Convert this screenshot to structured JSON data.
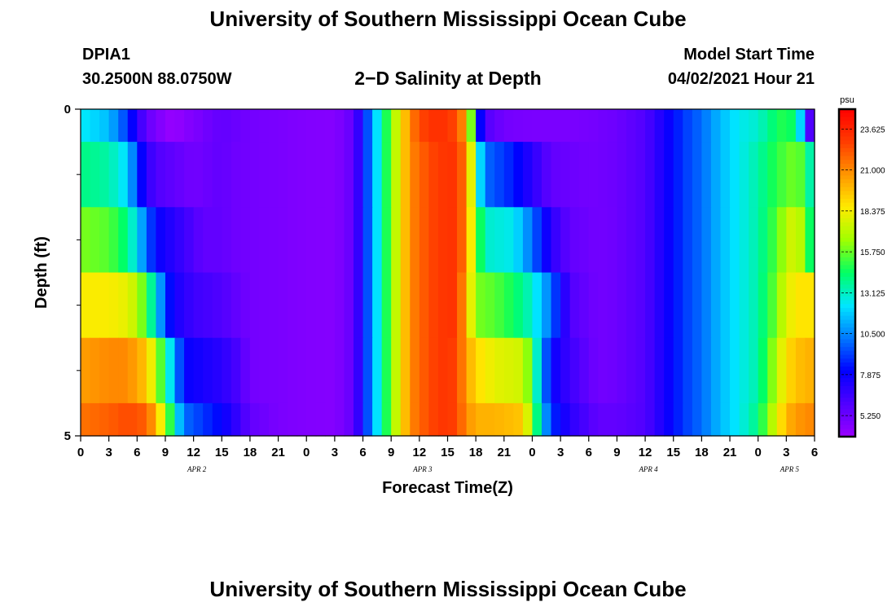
{
  "header": {
    "main_title": "University of Southern Mississippi Ocean Cube",
    "station_id": "DPIA1",
    "station_coords": "30.2500N  88.0750W",
    "plot_title": "2−D Salinity at Depth",
    "model_start_label": "Model Start Time",
    "model_start_value": "04/02/2021 Hour 21"
  },
  "footer": {
    "title": "University of Southern Mississippi Ocean Cube"
  },
  "chart_data": {
    "type": "heatmap",
    "title": "2−D Salinity at Depth",
    "xlabel": "Forecast Time(Z)",
    "ylabel": "Depth (ft)",
    "x_tick_labels": [
      "0",
      "3",
      "6",
      "9",
      "12",
      "15",
      "18",
      "21",
      "0",
      "3",
      "6",
      "9",
      "12",
      "15",
      "18",
      "21",
      "0",
      "3",
      "6",
      "9",
      "12",
      "15",
      "18",
      "21",
      "0",
      "3",
      "6"
    ],
    "x_range_hours": [
      0,
      78
    ],
    "date_labels": [
      {
        "label": "APR 2",
        "hour": 12
      },
      {
        "label": "APR 3",
        "hour": 36
      },
      {
        "label": "APR 4",
        "hour": 60
      },
      {
        "label": "APR 5",
        "hour": 75
      }
    ],
    "y_tick_labels": [
      "0",
      "5"
    ],
    "ylim": [
      0,
      5
    ],
    "y_minor_ticks": [
      1,
      2,
      3,
      4
    ],
    "grid": false,
    "colorbar": {
      "unit": "psu",
      "min": 3.9,
      "max": 24.9,
      "ticks": [
        23.625,
        21.0,
        18.375,
        15.75,
        13.125,
        10.5,
        7.875,
        5.25
      ],
      "tick_labels": [
        "23.625",
        "21.000",
        "18.375",
        "15.750",
        "13.125",
        "10.500",
        "7.875",
        "5.250"
      ],
      "colors": [
        "#9a00ff",
        "#5000ff",
        "#0000ff",
        "#0078ff",
        "#00e6ff",
        "#00ff64",
        "#a0ff00",
        "#ffeb00",
        "#ff9600",
        "#ff3c00",
        "#ff0000"
      ]
    },
    "depth_layers": [
      {
        "top": 0,
        "bottom": 0.5,
        "x_end_hour": 78,
        "anchors": [
          [
            0,
            12.5
          ],
          [
            3,
            11.5
          ],
          [
            5,
            9
          ],
          [
            6,
            7
          ],
          [
            7,
            5.5
          ],
          [
            8,
            4.8
          ],
          [
            9,
            4.3
          ],
          [
            10,
            3.9
          ],
          [
            11,
            4.5
          ],
          [
            12,
            4.6
          ],
          [
            13,
            5
          ],
          [
            15,
            5.5
          ],
          [
            18,
            5
          ],
          [
            21,
            4.8
          ],
          [
            24,
            4.6
          ],
          [
            27,
            4.5
          ],
          [
            29,
            5.5
          ],
          [
            30,
            8
          ],
          [
            31,
            11
          ],
          [
            32,
            13.5
          ],
          [
            33,
            16
          ],
          [
            34,
            18.5
          ],
          [
            35,
            21
          ],
          [
            36,
            22.5
          ],
          [
            38,
            23.4
          ],
          [
            40,
            22.5
          ],
          [
            41,
            20
          ],
          [
            41.5,
            16
          ],
          [
            42,
            12
          ],
          [
            42.5,
            8
          ],
          [
            43,
            6
          ],
          [
            45,
            5
          ],
          [
            48,
            4.8
          ],
          [
            51,
            4.8
          ],
          [
            54,
            4.9
          ],
          [
            57,
            5.2
          ],
          [
            60,
            6
          ],
          [
            62,
            7.5
          ],
          [
            64,
            9
          ],
          [
            66,
            10
          ],
          [
            68,
            11.5
          ],
          [
            70,
            12.5
          ],
          [
            72,
            13
          ],
          [
            74,
            14.5
          ],
          [
            75,
            15
          ],
          [
            76,
            14
          ],
          [
            77,
            10
          ],
          [
            77.5,
            6
          ],
          [
            78,
            5
          ]
        ]
      },
      {
        "top": 0.5,
        "bottom": 1.5,
        "x_end_hour": 78,
        "anchors": [
          [
            0,
            14
          ],
          [
            3,
            13.5
          ],
          [
            5,
            12
          ],
          [
            6,
            9
          ],
          [
            7,
            7
          ],
          [
            8,
            6
          ],
          [
            10,
            5.5
          ],
          [
            12,
            5
          ],
          [
            13,
            5.2
          ],
          [
            15,
            5.5
          ],
          [
            16,
            5.2
          ],
          [
            18,
            5
          ],
          [
            21,
            4.8
          ],
          [
            24,
            4.6
          ],
          [
            27,
            4.5
          ],
          [
            29,
            5.5
          ],
          [
            30,
            8
          ],
          [
            31,
            11
          ],
          [
            32,
            13.5
          ],
          [
            33,
            16
          ],
          [
            34,
            18.5
          ],
          [
            35,
            21
          ],
          [
            37,
            22.5
          ],
          [
            39,
            23.2
          ],
          [
            40,
            23
          ],
          [
            41,
            21
          ],
          [
            41.5,
            18
          ],
          [
            42,
            14
          ],
          [
            43,
            10
          ],
          [
            46,
            8.5
          ],
          [
            48,
            7
          ],
          [
            50,
            5.5
          ],
          [
            54,
            5
          ],
          [
            57,
            5.2
          ],
          [
            60,
            6
          ],
          [
            62,
            7.5
          ],
          [
            64,
            9
          ],
          [
            66,
            10
          ],
          [
            68,
            11.5
          ],
          [
            70,
            12.5
          ],
          [
            72,
            13.5
          ],
          [
            74,
            15
          ],
          [
            76,
            16
          ],
          [
            77,
            15
          ],
          [
            78,
            12
          ]
        ]
      },
      {
        "top": 1.5,
        "bottom": 2.5,
        "x_end_hour": 78,
        "anchors": [
          [
            0,
            16
          ],
          [
            3,
            15.5
          ],
          [
            5,
            14
          ],
          [
            6,
            12
          ],
          [
            7,
            10
          ],
          [
            8,
            8
          ],
          [
            10,
            7
          ],
          [
            12,
            6
          ],
          [
            13,
            5.5
          ],
          [
            15,
            5.5
          ],
          [
            16,
            5.2
          ],
          [
            18,
            5
          ],
          [
            21,
            4.8
          ],
          [
            24,
            4.6
          ],
          [
            27,
            4.5
          ],
          [
            29,
            5.5
          ],
          [
            30,
            8
          ],
          [
            31,
            11
          ],
          [
            32,
            13.5
          ],
          [
            33,
            16
          ],
          [
            34,
            18.5
          ],
          [
            35,
            21
          ],
          [
            37,
            22.5
          ],
          [
            39,
            23.2
          ],
          [
            40,
            23
          ],
          [
            41,
            21
          ],
          [
            42,
            16
          ],
          [
            43,
            13
          ],
          [
            46,
            12.5
          ],
          [
            48,
            10
          ],
          [
            50,
            7
          ],
          [
            52,
            5.5
          ],
          [
            55,
            5
          ],
          [
            57,
            5.2
          ],
          [
            60,
            6
          ],
          [
            62,
            7.5
          ],
          [
            64,
            9
          ],
          [
            66,
            10
          ],
          [
            68,
            11.5
          ],
          [
            70,
            12.5
          ],
          [
            72,
            13.5
          ],
          [
            74,
            15.5
          ],
          [
            75,
            17
          ],
          [
            76,
            18
          ],
          [
            77,
            16
          ],
          [
            78,
            13
          ]
        ]
      },
      {
        "top": 2.5,
        "bottom": 3.5,
        "x_end_hour": 78,
        "anchors": [
          [
            0,
            18.5
          ],
          [
            3,
            18.5
          ],
          [
            5,
            18
          ],
          [
            6,
            17
          ],
          [
            7,
            15
          ],
          [
            8,
            12.5
          ],
          [
            9,
            9
          ],
          [
            10,
            7.5
          ],
          [
            12,
            6.5
          ],
          [
            15,
            6
          ],
          [
            18,
            5
          ],
          [
            21,
            4.8
          ],
          [
            24,
            4.6
          ],
          [
            27,
            4.5
          ],
          [
            29,
            5.5
          ],
          [
            30,
            8
          ],
          [
            31,
            11
          ],
          [
            32,
            13.5
          ],
          [
            33,
            16
          ],
          [
            34,
            18.5
          ],
          [
            35,
            21
          ],
          [
            37,
            22.5
          ],
          [
            39,
            23.2
          ],
          [
            40,
            23
          ],
          [
            41,
            20
          ],
          [
            42,
            16
          ],
          [
            44,
            15.5
          ],
          [
            46,
            14.5
          ],
          [
            48,
            13
          ],
          [
            50,
            10
          ],
          [
            52,
            6
          ],
          [
            55,
            5
          ],
          [
            57,
            5.2
          ],
          [
            60,
            6
          ],
          [
            62,
            7.5
          ],
          [
            64,
            9
          ],
          [
            66,
            10
          ],
          [
            68,
            11.5
          ],
          [
            70,
            12.5
          ],
          [
            72,
            13.5
          ],
          [
            74,
            16
          ],
          [
            75,
            18
          ],
          [
            77,
            19
          ],
          [
            78,
            18.5
          ]
        ]
      },
      {
        "top": 3.5,
        "bottom": 4.5,
        "x_end_hour": 78,
        "anchors": [
          [
            0,
            20.5
          ],
          [
            3,
            21
          ],
          [
            5,
            21
          ],
          [
            7,
            19.5
          ],
          [
            8,
            17
          ],
          [
            9,
            14
          ],
          [
            10,
            11
          ],
          [
            11,
            8
          ],
          [
            13,
            7.5
          ],
          [
            15,
            7
          ],
          [
            17,
            6
          ],
          [
            18,
            5
          ],
          [
            21,
            4.8
          ],
          [
            24,
            4.6
          ],
          [
            27,
            4.5
          ],
          [
            29,
            5.5
          ],
          [
            30,
            8
          ],
          [
            31,
            11
          ],
          [
            32,
            13.5
          ],
          [
            33,
            16
          ],
          [
            34,
            18.5
          ],
          [
            35,
            21
          ],
          [
            37,
            22.5
          ],
          [
            39,
            23.2
          ],
          [
            40,
            22.5
          ],
          [
            41,
            20.5
          ],
          [
            42,
            19
          ],
          [
            44,
            18
          ],
          [
            47,
            17.5
          ],
          [
            48,
            15
          ],
          [
            49,
            11
          ],
          [
            50,
            8
          ],
          [
            52,
            6.5
          ],
          [
            55,
            5
          ],
          [
            57,
            5.2
          ],
          [
            60,
            6
          ],
          [
            62,
            7.5
          ],
          [
            64,
            9
          ],
          [
            66,
            10
          ],
          [
            68,
            11.5
          ],
          [
            70,
            12.5
          ],
          [
            72,
            13.5
          ],
          [
            74,
            17
          ],
          [
            75,
            19
          ],
          [
            77,
            20
          ],
          [
            78,
            20
          ]
        ]
      },
      {
        "top": 4.5,
        "bottom": 5,
        "x_end_hour": 78,
        "anchors": [
          [
            0,
            21.5
          ],
          [
            3,
            22
          ],
          [
            5,
            22.5
          ],
          [
            7,
            22
          ],
          [
            8,
            20
          ],
          [
            9,
            17
          ],
          [
            10,
            13
          ],
          [
            11,
            10
          ],
          [
            13,
            9
          ],
          [
            15,
            8
          ],
          [
            17,
            6.5
          ],
          [
            18,
            5.5
          ],
          [
            21,
            4.8
          ],
          [
            24,
            4.6
          ],
          [
            27,
            4.5
          ],
          [
            29,
            5.5
          ],
          [
            30,
            8
          ],
          [
            31,
            11
          ],
          [
            32,
            13.5
          ],
          [
            33,
            16
          ],
          [
            34,
            18.5
          ],
          [
            35,
            21
          ],
          [
            37,
            22.5
          ],
          [
            39,
            23.2
          ],
          [
            40,
            22.5
          ],
          [
            41,
            21
          ],
          [
            42,
            20
          ],
          [
            44,
            20
          ],
          [
            47,
            19.5
          ],
          [
            48,
            16
          ],
          [
            49,
            12
          ],
          [
            50,
            9
          ],
          [
            52,
            7
          ],
          [
            55,
            5.5
          ],
          [
            57,
            5.5
          ],
          [
            60,
            6
          ],
          [
            62,
            7.5
          ],
          [
            64,
            9
          ],
          [
            66,
            10
          ],
          [
            68,
            11.5
          ],
          [
            70,
            12.5
          ],
          [
            72,
            14
          ],
          [
            74,
            18
          ],
          [
            75,
            20
          ],
          [
            77,
            21
          ],
          [
            78,
            21
          ]
        ]
      }
    ]
  }
}
